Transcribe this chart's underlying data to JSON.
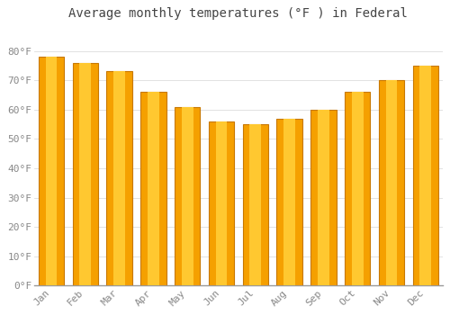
{
  "title": "Average monthly temperatures (°F ) in Federal",
  "months": [
    "Jan",
    "Feb",
    "Mar",
    "Apr",
    "May",
    "Jun",
    "Jul",
    "Aug",
    "Sep",
    "Oct",
    "Nov",
    "Dec"
  ],
  "values": [
    78,
    76,
    73,
    66,
    61,
    56,
    55,
    57,
    60,
    66,
    70,
    75
  ],
  "bar_color_center": "#FFC830",
  "bar_color_edge": "#F5A000",
  "bar_border_color": "#C87800",
  "background_color": "#FFFFFF",
  "plot_bg_color": "#FFFFFF",
  "grid_color": "#DDDDDD",
  "ylim": [
    0,
    88
  ],
  "yticks": [
    0,
    10,
    20,
    30,
    40,
    50,
    60,
    70,
    80
  ],
  "title_fontsize": 10,
  "tick_fontsize": 8,
  "tick_label_color": "#888888",
  "title_color": "#444444"
}
